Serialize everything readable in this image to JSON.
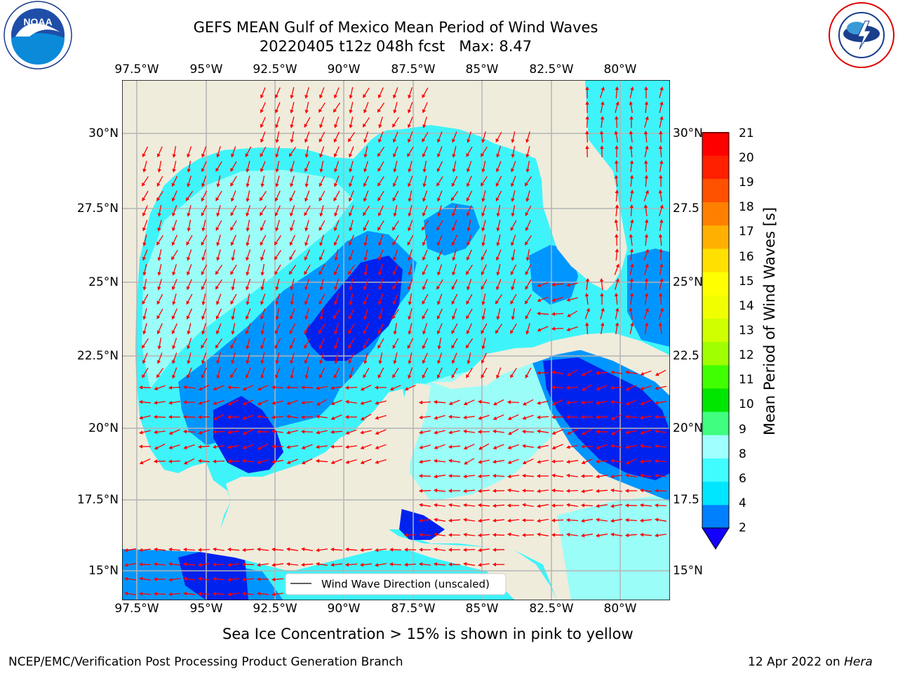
{
  "header": {
    "title_line1": "GEFS MEAN Gulf of Mexico Mean Period of Wind Waves",
    "title_line2": "20220405 t12z 048h fcst   Max: 8.47"
  },
  "logos": {
    "left": {
      "name": "noaa-logo",
      "text": "NOAA",
      "ring": "NATIONAL OCEANIC AND ATMOSPHERIC ADMINISTRATION · U.S. DEPARTMENT OF COMMERCE"
    },
    "right": {
      "name": "nws-logo",
      "ring": "NATIONAL WEATHER SERVICE"
    }
  },
  "map": {
    "lon_ticks_top": [
      "97.5°W",
      "95°W",
      "92.5°W",
      "90°W",
      "87.5°W",
      "85°W",
      "82.5°W",
      "80°W"
    ],
    "lon_ticks_bottom": [
      "97.5°W",
      "95°W",
      "92.5°W",
      "90°W",
      "87.5°W",
      "85°W",
      "82.5°W",
      "80°W"
    ],
    "lat_ticks_left": [
      "30°N",
      "27.5°N",
      "25°N",
      "22.5°N",
      "20°N",
      "17.5°N",
      "15°N"
    ],
    "lat_ticks_right": [
      "30°N",
      "27.5",
      "25°N",
      "22.5",
      "20°N",
      "17.5",
      "15°N"
    ],
    "legend_text": "Wind Wave Direction (unscaled)",
    "colors": {
      "land": "#efecdc",
      "ocean_light": "#9bfdf7",
      "ocean_cyan": "#3ef4fa",
      "ocean_mid": "#0096ff",
      "ocean_deep": "#0022ee",
      "arrow": "#ff0000",
      "grid": "#b4b4b4"
    }
  },
  "colorbar": {
    "label": "Mean Period of Wind Waves [s]",
    "ticks": [
      "21",
      "20",
      "19",
      "18",
      "17",
      "16",
      "15",
      "14",
      "13",
      "12",
      "11",
      "10",
      "9",
      "8",
      "6",
      "4",
      "2"
    ],
    "colors": [
      "#1400ff",
      "#0080ff",
      "#00e6ff",
      "#40fcff",
      "#a0ffff",
      "#40ff80",
      "#00e600",
      "#40ff00",
      "#a0ff00",
      "#d0ff00",
      "#f0ff00",
      "#ffff00",
      "#ffe000",
      "#ffb000",
      "#ff8000",
      "#ff5000",
      "#ff2000",
      "#ff0000"
    ]
  },
  "caption": "Sea Ice Concentration > 15% is shown in pink to yellow",
  "footer": {
    "left": "NCEP/EMC/Verification Post Processing Product Generation Branch",
    "right_date": "12 Apr 2022 on ",
    "right_host": "Hera"
  }
}
